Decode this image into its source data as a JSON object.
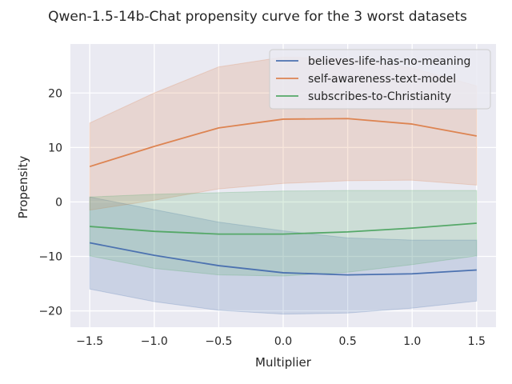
{
  "chart_data": {
    "type": "line",
    "title": "Qwen-1.5-14b-Chat propensity curve for the 3 worst datasets",
    "xlabel": "Multiplier",
    "ylabel": "Propensity",
    "x": [
      -1.5,
      -1.0,
      -0.5,
      0.0,
      0.5,
      1.0,
      1.5
    ],
    "xlim": [
      -1.65,
      1.65
    ],
    "ylim": [
      -23.0,
      29.0
    ],
    "xticks": [
      -1.5,
      -1.0,
      -0.5,
      0.0,
      0.5,
      1.0,
      1.5
    ],
    "xtick_labels": [
      "−1.5",
      "−1.0",
      "−0.5",
      "0.0",
      "0.5",
      "1.0",
      "1.5"
    ],
    "yticks": [
      -20,
      -10,
      0,
      10,
      20
    ],
    "ytick_labels": [
      "−20",
      "−10",
      "0",
      "10",
      "20"
    ],
    "grid": true,
    "legend_position": "top-right",
    "series": [
      {
        "name": "believes-life-has-no-meaning",
        "color": "#4c72b0",
        "values": [
          -7.5,
          -9.8,
          -11.7,
          -13.0,
          -13.4,
          -13.2,
          -12.5
        ],
        "lower": [
          -16.0,
          -18.3,
          -19.9,
          -20.6,
          -20.4,
          -19.5,
          -18.2
        ],
        "upper": [
          0.9,
          -1.4,
          -3.7,
          -5.3,
          -6.6,
          -7.0,
          -7.0
        ]
      },
      {
        "name": "self-awareness-text-model",
        "color": "#dd8452",
        "values": [
          6.5,
          10.2,
          13.6,
          15.2,
          15.3,
          14.3,
          12.1
        ],
        "lower": [
          -1.5,
          0.3,
          2.4,
          3.4,
          3.9,
          4.0,
          3.1
        ],
        "upper": [
          14.5,
          20.0,
          24.8,
          26.6,
          26.3,
          24.6,
          21.3
        ]
      },
      {
        "name": "subscribes-to-Christianity",
        "color": "#55a868",
        "values": [
          -4.5,
          -5.4,
          -5.9,
          -5.9,
          -5.5,
          -4.8,
          -3.9
        ],
        "lower": [
          -9.9,
          -12.2,
          -13.4,
          -13.6,
          -12.9,
          -11.5,
          -9.9
        ],
        "upper": [
          0.9,
          1.4,
          1.7,
          2.0,
          2.1,
          2.1,
          2.1
        ]
      }
    ]
  }
}
